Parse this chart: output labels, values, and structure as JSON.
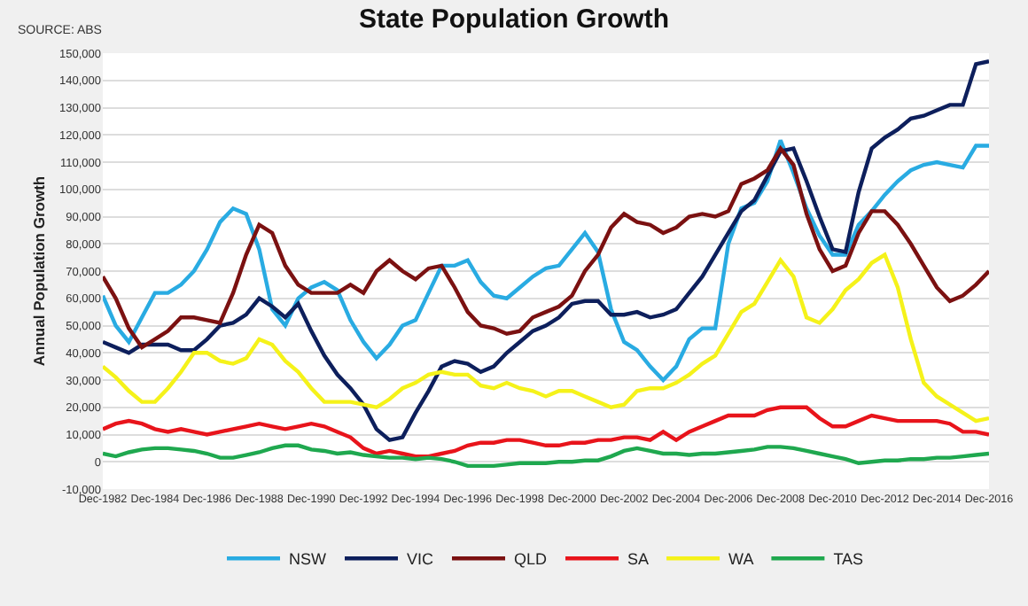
{
  "chart_data": {
    "type": "line",
    "title": "State Population Growth",
    "ylabel": "Annual Population Growth",
    "annotations": [
      "SOURCE: ABS"
    ],
    "x": [
      "1982-12",
      "1983-06",
      "1983-12",
      "1984-06",
      "1984-12",
      "1985-06",
      "1985-12",
      "1986-06",
      "1986-12",
      "1987-06",
      "1987-12",
      "1988-06",
      "1988-12",
      "1989-06",
      "1989-12",
      "1990-06",
      "1990-12",
      "1991-06",
      "1991-12",
      "1992-06",
      "1992-12",
      "1993-06",
      "1993-12",
      "1994-06",
      "1994-12",
      "1995-06",
      "1995-12",
      "1996-06",
      "1996-12",
      "1997-06",
      "1997-12",
      "1998-06",
      "1998-12",
      "1999-06",
      "1999-12",
      "2000-06",
      "2000-12",
      "2001-06",
      "2001-12",
      "2002-06",
      "2002-12",
      "2003-06",
      "2003-12",
      "2004-06",
      "2004-12",
      "2005-06",
      "2005-12",
      "2006-06",
      "2006-12",
      "2007-06",
      "2007-12",
      "2008-06",
      "2008-12",
      "2009-06",
      "2009-12",
      "2010-06",
      "2010-12",
      "2011-06",
      "2011-12",
      "2012-06",
      "2012-12",
      "2013-06",
      "2013-12",
      "2014-06",
      "2014-12",
      "2015-06",
      "2015-12",
      "2016-06",
      "2016-12"
    ],
    "series": [
      {
        "name": "NSW",
        "color": "#29abe2",
        "values": [
          61000,
          50000,
          44000,
          53000,
          62000,
          62000,
          65000,
          70000,
          78000,
          88000,
          93000,
          91000,
          78000,
          56000,
          50000,
          60000,
          64000,
          66000,
          63000,
          52000,
          44000,
          38000,
          43000,
          50000,
          52000,
          62000,
          72000,
          72000,
          74000,
          66000,
          61000,
          60000,
          64000,
          68000,
          71000,
          72000,
          78000,
          84000,
          77000,
          56000,
          44000,
          41000,
          35000,
          30000,
          35000,
          45000,
          49000,
          49000,
          80000,
          93000,
          95000,
          103000,
          118000,
          106000,
          93000,
          83000,
          76000,
          76000,
          87000,
          92000,
          98000,
          103000,
          107000,
          109000,
          110000,
          109000,
          108000,
          116000,
          116000
        ]
      },
      {
        "name": "VIC",
        "color": "#0d1f5c",
        "values": [
          44000,
          42000,
          40000,
          43000,
          43000,
          43000,
          41000,
          41000,
          45000,
          50000,
          51000,
          54000,
          60000,
          57000,
          53000,
          58000,
          48000,
          39000,
          32000,
          27000,
          21000,
          12000,
          8000,
          9000,
          18000,
          26000,
          35000,
          37000,
          36000,
          33000,
          35000,
          40000,
          44000,
          48000,
          50000,
          53000,
          58000,
          59000,
          59000,
          54000,
          54000,
          55000,
          53000,
          54000,
          56000,
          62000,
          68000,
          76000,
          84000,
          92000,
          96000,
          105000,
          114000,
          115000,
          103000,
          90000,
          78000,
          77000,
          99000,
          115000,
          119000,
          122000,
          126000,
          127000,
          129000,
          131000,
          131000,
          146000,
          147000
        ]
      },
      {
        "name": "QLD",
        "color": "#7b1111",
        "values": [
          68000,
          60000,
          49000,
          42000,
          45000,
          48000,
          53000,
          53000,
          52000,
          51000,
          62000,
          76000,
          87000,
          84000,
          72000,
          65000,
          62000,
          62000,
          62000,
          65000,
          62000,
          70000,
          74000,
          70000,
          67000,
          71000,
          72000,
          64000,
          55000,
          50000,
          49000,
          47000,
          48000,
          53000,
          55000,
          57000,
          61000,
          70000,
          76000,
          86000,
          91000,
          88000,
          87000,
          84000,
          86000,
          90000,
          91000,
          90000,
          92000,
          102000,
          104000,
          107000,
          115000,
          109000,
          91000,
          78000,
          70000,
          72000,
          84000,
          92000,
          92000,
          87000,
          80000,
          72000,
          64000,
          59000,
          61000,
          65000,
          70000
        ]
      },
      {
        "name": "SA",
        "color": "#e8141b",
        "values": [
          12000,
          14000,
          15000,
          14000,
          12000,
          11000,
          12000,
          11000,
          10000,
          11000,
          12000,
          13000,
          14000,
          13000,
          12000,
          13000,
          14000,
          13000,
          11000,
          9000,
          5000,
          3000,
          4000,
          3000,
          2000,
          2000,
          3000,
          4000,
          6000,
          7000,
          7000,
          8000,
          8000,
          7000,
          6000,
          6000,
          7000,
          7000,
          8000,
          8000,
          9000,
          9000,
          8000,
          11000,
          8000,
          11000,
          13000,
          15000,
          17000,
          17000,
          17000,
          19000,
          20000,
          20000,
          20000,
          16000,
          13000,
          13000,
          15000,
          17000,
          16000,
          15000,
          15000,
          15000,
          15000,
          14000,
          11000,
          11000,
          10000
        ]
      },
      {
        "name": "WA",
        "color": "#f5f21a",
        "values": [
          35000,
          31000,
          26000,
          22000,
          22000,
          27000,
          33000,
          40000,
          40000,
          37000,
          36000,
          38000,
          45000,
          43000,
          37000,
          33000,
          27000,
          22000,
          22000,
          22000,
          21000,
          20000,
          23000,
          27000,
          29000,
          32000,
          33000,
          32000,
          32000,
          28000,
          27000,
          29000,
          27000,
          26000,
          24000,
          26000,
          26000,
          24000,
          22000,
          20000,
          21000,
          26000,
          27000,
          27000,
          29000,
          32000,
          36000,
          39000,
          47000,
          55000,
          58000,
          66000,
          74000,
          68000,
          53000,
          51000,
          56000,
          63000,
          67000,
          73000,
          76000,
          64000,
          45000,
          29000,
          24000,
          21000,
          18000,
          15000,
          16000
        ]
      },
      {
        "name": "TAS",
        "color": "#1fa84f",
        "values": [
          3000,
          2000,
          3500,
          4500,
          5000,
          5000,
          4500,
          4000,
          3000,
          1500,
          1500,
          2500,
          3500,
          5000,
          6000,
          6000,
          4500,
          4000,
          3000,
          3500,
          2500,
          2000,
          1500,
          1500,
          1000,
          1500,
          1000,
          0,
          -1500,
          -1500,
          -1500,
          -1000,
          -500,
          -500,
          -500,
          0,
          0,
          500,
          500,
          2000,
          4000,
          5000,
          4000,
          3000,
          3000,
          2500,
          3000,
          3000,
          3500,
          4000,
          4500,
          5500,
          5500,
          5000,
          4000,
          3000,
          2000,
          1000,
          -500,
          0,
          500,
          500,
          1000,
          1000,
          1500,
          1500,
          2000,
          2500,
          3000
        ]
      }
    ],
    "xlim": [
      "1982-12",
      "2016-12"
    ],
    "xticks": [
      {
        "value": "1982-12",
        "label": "Dec-1982"
      },
      {
        "value": "1984-12",
        "label": "Dec-1984"
      },
      {
        "value": "1986-12",
        "label": "Dec-1986"
      },
      {
        "value": "1988-12",
        "label": "Dec-1988"
      },
      {
        "value": "1990-12",
        "label": "Dec-1990"
      },
      {
        "value": "1992-12",
        "label": "Dec-1992"
      },
      {
        "value": "1994-12",
        "label": "Dec-1994"
      },
      {
        "value": "1996-12",
        "label": "Dec-1996"
      },
      {
        "value": "1998-12",
        "label": "Dec-1998"
      },
      {
        "value": "2000-12",
        "label": "Dec-2000"
      },
      {
        "value": "2002-12",
        "label": "Dec-2002"
      },
      {
        "value": "2004-12",
        "label": "Dec-2004"
      },
      {
        "value": "2006-12",
        "label": "Dec-2006"
      },
      {
        "value": "2008-12",
        "label": "Dec-2008"
      },
      {
        "value": "2010-12",
        "label": "Dec-2010"
      },
      {
        "value": "2012-12",
        "label": "Dec-2012"
      },
      {
        "value": "2014-12",
        "label": "Dec-2014"
      },
      {
        "value": "2016-12",
        "label": "Dec-2016"
      }
    ],
    "ylim": [
      -10000,
      150000
    ],
    "yticks": [
      {
        "value": -10000,
        "label": "-10,000"
      },
      0,
      {
        "value": 10000,
        "label": "10,000"
      },
      {
        "value": 20000,
        "label": "20,000"
      },
      {
        "value": 30000,
        "label": "30,000"
      },
      {
        "value": 40000,
        "label": "40,000"
      },
      {
        "value": 50000,
        "label": "50,000"
      },
      {
        "value": 60000,
        "label": "60,000"
      },
      {
        "value": 70000,
        "label": "70,000"
      },
      {
        "value": 80000,
        "label": "80,000"
      },
      {
        "value": 90000,
        "label": "90,000"
      },
      {
        "value": 100000,
        "label": "100,000"
      },
      {
        "value": 110000,
        "label": "110,000"
      },
      {
        "value": 120000,
        "label": "120,000"
      },
      {
        "value": 130000,
        "label": "130,000"
      },
      {
        "value": 140000,
        "label": "140,000"
      },
      {
        "value": 150000,
        "label": "150,000"
      }
    ],
    "grid": "y",
    "legend": "bottom"
  }
}
